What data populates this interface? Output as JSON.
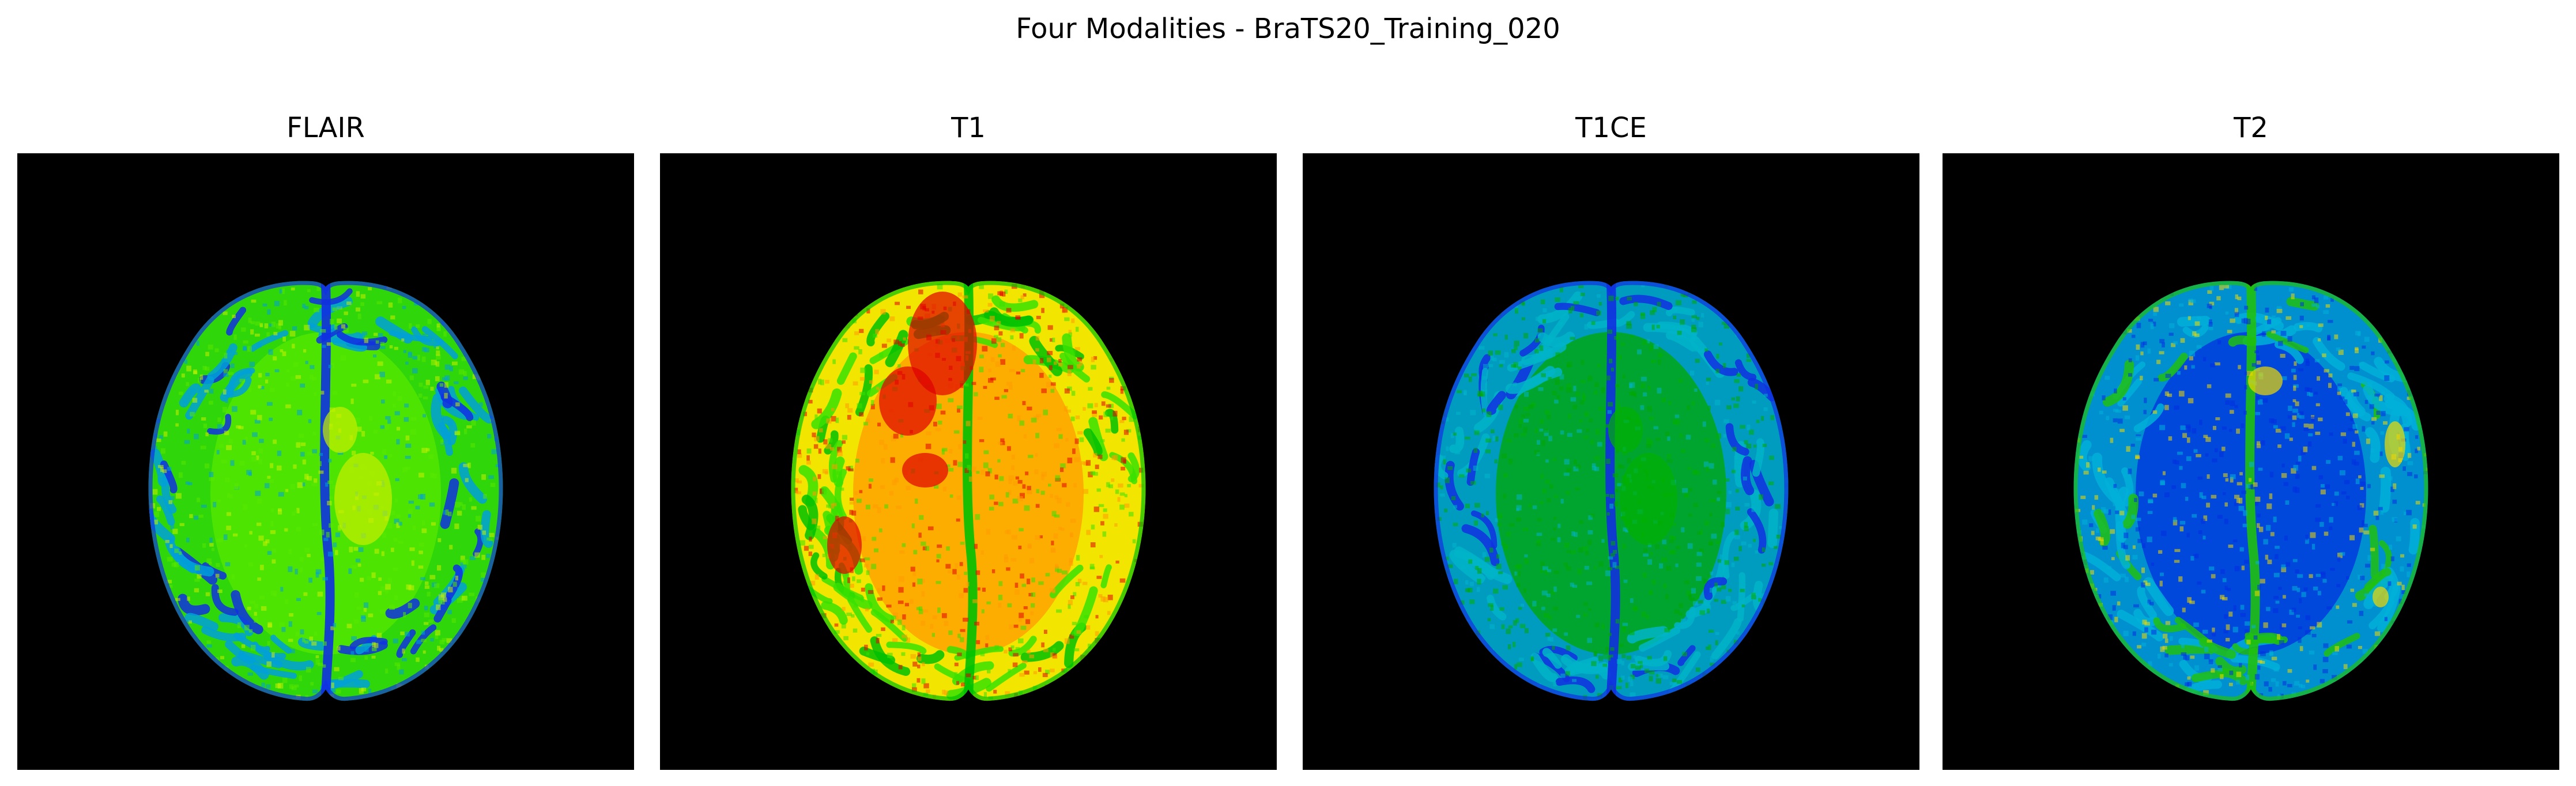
{
  "figure": {
    "title": "Four Modalities - BraTS20_Training_020"
  },
  "panels": [
    {
      "title": "FLAIR",
      "colormap": "nipy_spectral",
      "palette": {
        "base": "#2fd60a",
        "mid": "#58e800",
        "hot": "#c8f000",
        "edge": "#1030e0",
        "cool": "#00a0d8"
      }
    },
    {
      "title": "T1",
      "colormap": "nipy_spectral",
      "palette": {
        "base": "#f2e600",
        "mid": "#ff9a00",
        "hot": "#e00000",
        "edge": "#00c000",
        "cool": "#38e000"
      }
    },
    {
      "title": "T1CE",
      "colormap": "nipy_spectral",
      "palette": {
        "base": "#009cc0",
        "mid": "#00a800",
        "hot": "#00b000",
        "edge": "#1030e0",
        "cool": "#00b4c8"
      }
    },
    {
      "title": "T2",
      "colormap": "nipy_spectral",
      "palette": {
        "base": "#0090d0",
        "mid": "#0030e0",
        "hot": "#f0d800",
        "edge": "#20c010",
        "cool": "#00b0d8"
      }
    }
  ]
}
